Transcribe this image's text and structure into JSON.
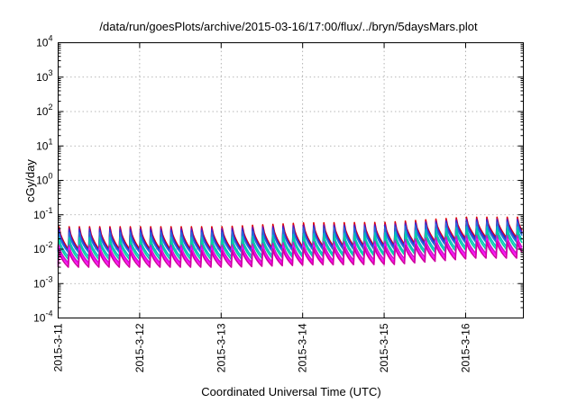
{
  "chart_data": {
    "type": "line",
    "title": "/data/run/goesPlots/archive/2015-03-16/17:00/flux/../bryn/5daysMars.plot",
    "xlabel": "Coordinated Universal Time (UTC)",
    "ylabel": "cGy/day",
    "y_scale": "log",
    "ylim": [
      0.0001,
      10000
    ],
    "xlim": [
      "2015-03-11 00:00",
      "2015-03-16 17:00"
    ],
    "x_ticks": [
      "2015-3-11",
      "2015-3-12",
      "2015-3-13",
      "2015-3-14",
      "2015-3-15",
      "2015-3-16"
    ],
    "y_ticks": [
      {
        "base": "10",
        "exp": "4"
      },
      {
        "base": "10",
        "exp": "3"
      },
      {
        "base": "10",
        "exp": "2"
      },
      {
        "base": "10",
        "exp": "1"
      },
      {
        "base": "10",
        "exp": "0"
      },
      {
        "base": "10",
        "exp": "-1"
      },
      {
        "base": "10",
        "exp": "-2"
      },
      {
        "base": "10",
        "exp": "-3"
      },
      {
        "base": "10",
        "exp": "-4"
      }
    ],
    "y_tick_values": [
      10000,
      1000,
      100,
      10,
      1,
      0.1,
      0.01,
      0.001,
      0.0001
    ],
    "grid": true,
    "sawtooth_period_hours": 3,
    "series_colors": [
      "#e00000",
      "#7a00a0",
      "#2a35d8",
      "#2a6ad8",
      "#00c0c0",
      "#00d0a0",
      "#c020c0",
      "#ff00ff",
      "#d000a0"
    ],
    "series": [
      {
        "peak": [
          0.045,
          0.045,
          0.045,
          0.058,
          0.06,
          0.085
        ],
        "trough": [
          0.01,
          0.01,
          0.01,
          0.012,
          0.013,
          0.022
        ]
      },
      {
        "peak": [
          0.04,
          0.04,
          0.04,
          0.05,
          0.052,
          0.075
        ],
        "trough": [
          0.009,
          0.009,
          0.009,
          0.011,
          0.012,
          0.02
        ]
      },
      {
        "peak": [
          0.035,
          0.035,
          0.035,
          0.045,
          0.047,
          0.068
        ],
        "trough": [
          0.0085,
          0.0085,
          0.0085,
          0.01,
          0.011,
          0.018
        ]
      },
      {
        "peak": [
          0.03,
          0.03,
          0.03,
          0.04,
          0.042,
          0.06
        ],
        "trough": [
          0.008,
          0.008,
          0.008,
          0.0095,
          0.01,
          0.016
        ]
      },
      {
        "peak": [
          0.022,
          0.022,
          0.022,
          0.028,
          0.03,
          0.045
        ],
        "trough": [
          0.006,
          0.006,
          0.006,
          0.007,
          0.0075,
          0.012
        ]
      },
      {
        "peak": [
          0.018,
          0.018,
          0.018,
          0.022,
          0.024,
          0.035
        ],
        "trough": [
          0.005,
          0.005,
          0.005,
          0.006,
          0.0065,
          0.01
        ]
      },
      {
        "peak": [
          0.013,
          0.013,
          0.013,
          0.016,
          0.017,
          0.025
        ],
        "trough": [
          0.004,
          0.004,
          0.004,
          0.0045,
          0.005,
          0.0075
        ]
      },
      {
        "peak": [
          0.011,
          0.011,
          0.011,
          0.013,
          0.014,
          0.02
        ],
        "trough": [
          0.0035,
          0.0035,
          0.0035,
          0.004,
          0.0042,
          0.0065
        ]
      },
      {
        "peak": [
          0.009,
          0.009,
          0.009,
          0.011,
          0.012,
          0.017
        ],
        "trough": [
          0.003,
          0.003,
          0.003,
          0.0035,
          0.0036,
          0.0055
        ]
      }
    ]
  }
}
